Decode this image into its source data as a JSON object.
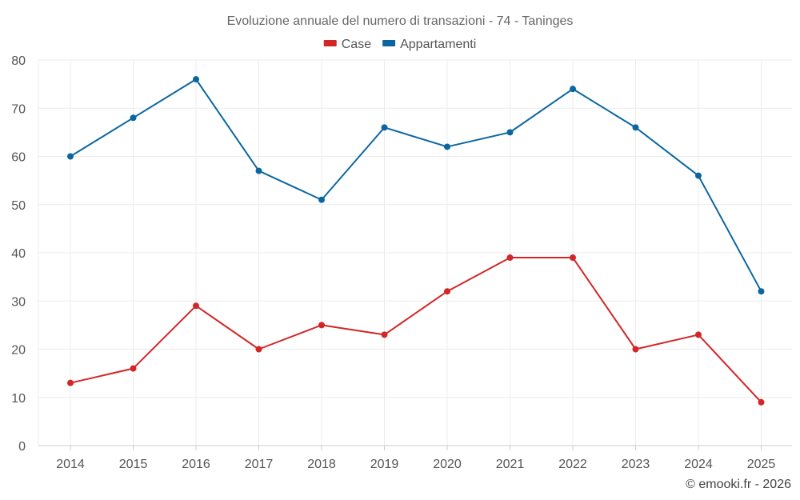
{
  "chart_data": {
    "type": "line",
    "title": "Evoluzione annuale del numero di transazioni - 74 - Taninges",
    "categories": [
      "2014",
      "2015",
      "2016",
      "2017",
      "2018",
      "2019",
      "2020",
      "2021",
      "2022",
      "2023",
      "2024",
      "2025"
    ],
    "series": [
      {
        "name": "Case",
        "color": "#d32626",
        "values": [
          13,
          16,
          29,
          20,
          25,
          23,
          32,
          39,
          39,
          20,
          23,
          9
        ]
      },
      {
        "name": "Appartamenti",
        "color": "#0b66a0",
        "values": [
          60,
          68,
          76,
          57,
          51,
          66,
          62,
          65,
          74,
          66,
          56,
          32
        ]
      }
    ],
    "ylim": [
      0,
      80
    ],
    "yticks": [
      0,
      10,
      20,
      30,
      40,
      50,
      60,
      70,
      80
    ],
    "xlabel": "",
    "ylabel": "",
    "grid": true,
    "legend": "top-center"
  },
  "watermark": "© emooki.fr - 2026"
}
